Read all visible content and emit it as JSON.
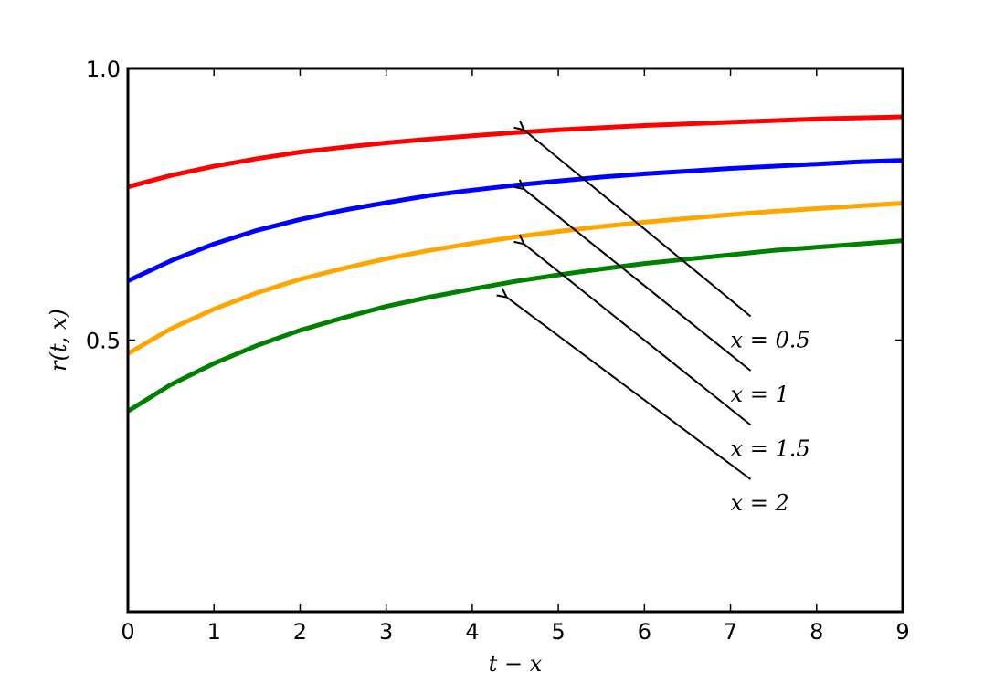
{
  "chart_data": {
    "type": "line",
    "title": "",
    "xlabel": "t − x",
    "ylabel": "r(t, x)",
    "xlim": [
      0,
      9
    ],
    "ylim": [
      0,
      1
    ],
    "x_ticks": [
      "0",
      "1",
      "2",
      "3",
      "4",
      "5",
      "6",
      "7",
      "8",
      "9"
    ],
    "y_ticks": [
      "0.5",
      "1.0"
    ],
    "grid": false,
    "x": [
      0,
      0.5,
      1,
      1.5,
      2,
      2.5,
      3,
      3.5,
      4,
      4.5,
      5,
      5.5,
      6,
      6.5,
      7,
      7.5,
      8,
      8.5,
      9
    ],
    "series": [
      {
        "name": "x = 0.5",
        "color": "#ff0000",
        "values": [
          0.782,
          0.803,
          0.82,
          0.834,
          0.846,
          0.855,
          0.863,
          0.87,
          0.876,
          0.882,
          0.887,
          0.891,
          0.895,
          0.898,
          0.901,
          0.904,
          0.907,
          0.909,
          0.911
        ]
      },
      {
        "name": "x = 1",
        "color": "#0000ff",
        "values": [
          0.609,
          0.646,
          0.677,
          0.702,
          0.722,
          0.739,
          0.753,
          0.766,
          0.776,
          0.785,
          0.793,
          0.8,
          0.806,
          0.811,
          0.816,
          0.82,
          0.824,
          0.828,
          0.831
        ]
      },
      {
        "name": "x = 1.5",
        "color": "#ffa500",
        "values": [
          0.475,
          0.521,
          0.557,
          0.587,
          0.612,
          0.632,
          0.65,
          0.665,
          0.678,
          0.69,
          0.7,
          0.709,
          0.717,
          0.724,
          0.731,
          0.737,
          0.742,
          0.747,
          0.752
        ]
      },
      {
        "name": "x = 2",
        "color": "#008000",
        "values": [
          0.369,
          0.418,
          0.457,
          0.49,
          0.518,
          0.541,
          0.562,
          0.579,
          0.594,
          0.608,
          0.62,
          0.631,
          0.641,
          0.649,
          0.657,
          0.665,
          0.671,
          0.677,
          0.683
        ]
      }
    ],
    "annotations": [
      {
        "text": "x = 0.5",
        "series": "x = 0.5",
        "arrow_to": [
          4.6,
          0.887
        ],
        "label_at": [
          7.0,
          0.5
        ]
      },
      {
        "text": "x = 1",
        "series": "x = 1",
        "arrow_to": [
          4.6,
          0.778
        ],
        "label_at": [
          7.0,
          0.4
        ]
      },
      {
        "text": "x = 1.5",
        "series": "x = 1.5",
        "arrow_to": [
          4.6,
          0.677
        ],
        "label_at": [
          7.0,
          0.3
        ]
      },
      {
        "text": "x = 2",
        "series": "x = 2",
        "arrow_to": [
          4.4,
          0.579
        ],
        "label_at": [
          7.0,
          0.2
        ]
      }
    ]
  }
}
